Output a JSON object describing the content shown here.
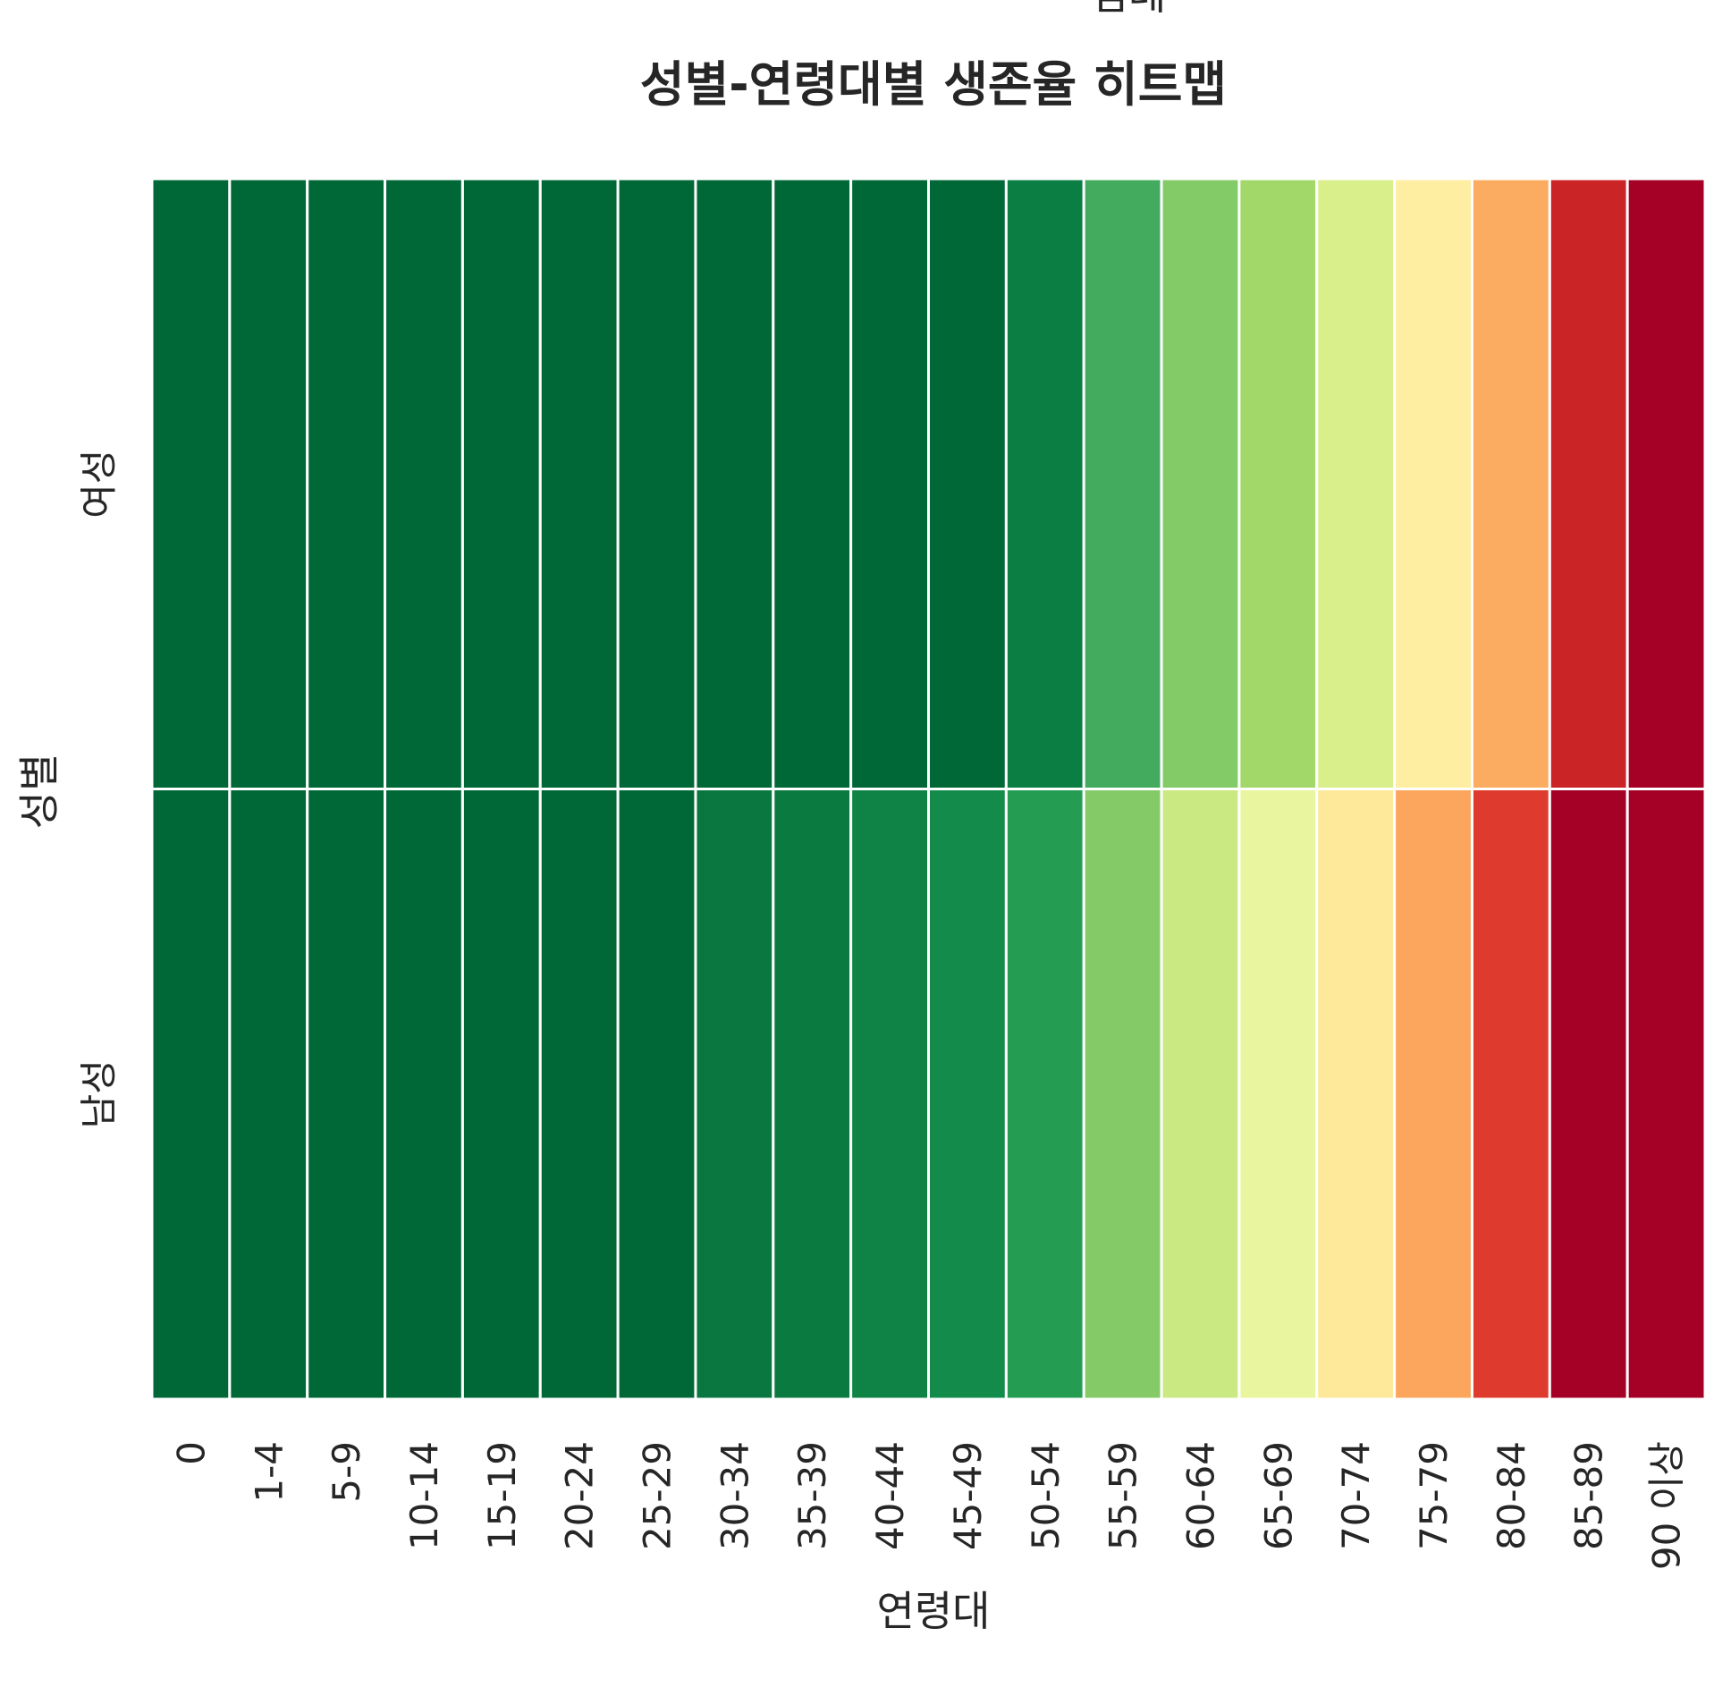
{
  "partial_top_text": "범례",
  "chart_data": {
    "type": "heatmap",
    "title": "성별-연령대별 생존율 히트맵",
    "xlabel": "연령대",
    "ylabel": "성별",
    "x_categories": [
      "0",
      "1-4",
      "5-9",
      "10-14",
      "15-19",
      "20-24",
      "25-29",
      "30-34",
      "35-39",
      "40-44",
      "45-49",
      "50-54",
      "55-59",
      "60-64",
      "65-69",
      "70-74",
      "75-79",
      "80-84",
      "85-89",
      "90 이상"
    ],
    "y_categories": [
      "여성",
      "남성"
    ],
    "colormap": "RdYlGn",
    "colorbar": false,
    "cell_separators": "white",
    "values": [
      [
        1.0,
        1.0,
        1.0,
        1.0,
        1.0,
        1.0,
        1.0,
        1.0,
        1.0,
        1.0,
        1.0,
        0.96,
        0.86,
        0.77,
        0.72,
        0.6,
        0.46,
        0.28,
        0.1,
        0.0
      ],
      [
        1.0,
        1.0,
        1.0,
        1.0,
        1.0,
        1.0,
        1.0,
        0.97,
        0.96,
        0.95,
        0.93,
        0.9,
        0.76,
        0.65,
        0.57,
        0.45,
        0.29,
        0.15,
        0.0,
        0.0
      ]
    ],
    "colors": [
      [
        "#006837",
        "#006837",
        "#006837",
        "#006837",
        "#006837",
        "#006837",
        "#006837",
        "#006837",
        "#006837",
        "#006837",
        "#006837",
        "#0b7e43",
        "#42ab5d",
        "#82cb67",
        "#a2d869",
        "#d9ef8b",
        "#feeea2",
        "#fcac60",
        "#cb2427",
        "#a50026"
      ],
      [
        "#006837",
        "#006837",
        "#006837",
        "#006837",
        "#006837",
        "#006837",
        "#006837",
        "#09773f",
        "#0b7a41",
        "#0f8345",
        "#138c4b",
        "#249d53",
        "#84ca67",
        "#cbe982",
        "#eaf69f",
        "#fee99a",
        "#fca55d",
        "#de3a2d",
        "#a50026",
        "#a50026"
      ]
    ]
  }
}
